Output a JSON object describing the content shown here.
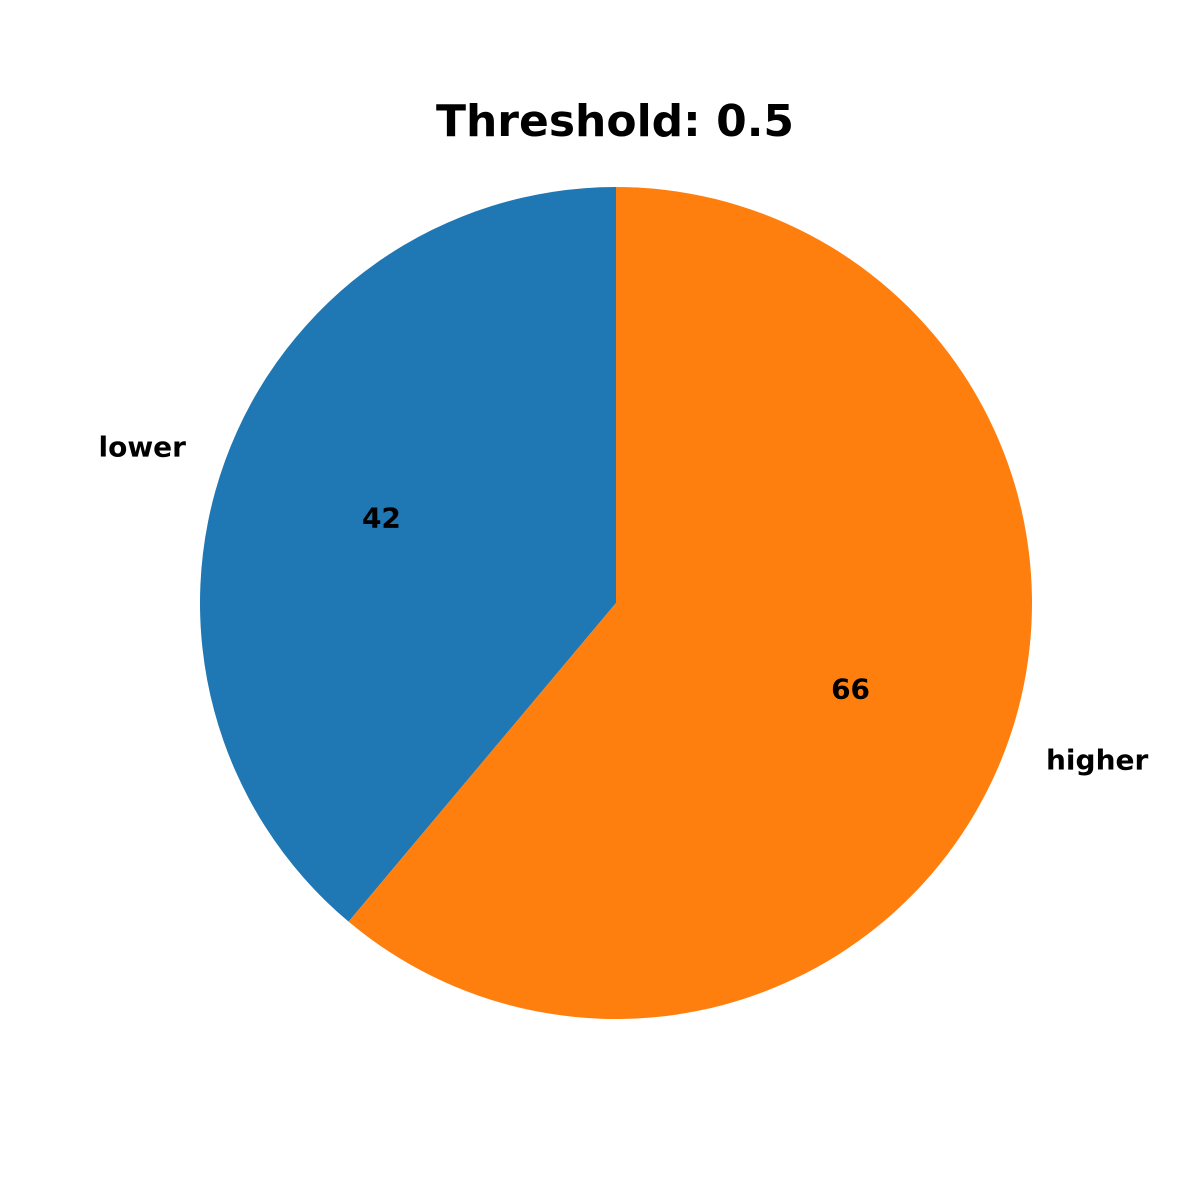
{
  "chart_data": {
    "type": "pie",
    "title": "Threshold: 0.5",
    "slices": [
      {
        "label": "lower",
        "value": 42,
        "display": "42",
        "color": "#1f77b4"
      },
      {
        "label": "higher",
        "value": 66,
        "display": "66",
        "color": "#ff7f0e"
      }
    ],
    "start_angle_deg": 90,
    "direction": "counterclockwise"
  }
}
